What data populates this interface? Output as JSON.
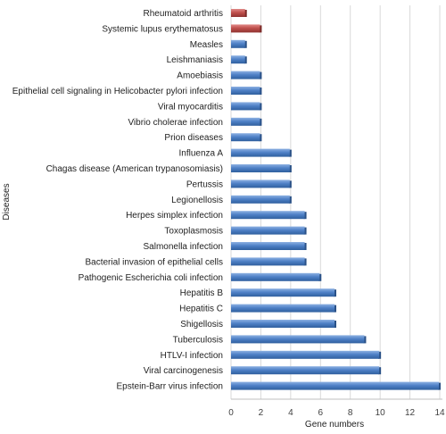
{
  "chart_data": {
    "type": "bar",
    "orientation": "horizontal",
    "xlabel": "Gene numbers",
    "ylabel": "Diseases",
    "xlim": [
      0,
      14
    ],
    "xticks": [
      0,
      2,
      4,
      6,
      8,
      10,
      12,
      14
    ],
    "grid": true,
    "colors": {
      "default": "#4a7ec3",
      "highlight": "#c0504d"
    },
    "bars": [
      {
        "label": "Rheumatoid arthritis",
        "value": 1,
        "highlight": true
      },
      {
        "label": "Systemic lupus erythematosus",
        "value": 2,
        "highlight": true
      },
      {
        "label": "Measles",
        "value": 1,
        "highlight": false
      },
      {
        "label": "Leishmaniasis",
        "value": 1,
        "highlight": false
      },
      {
        "label": "Amoebiasis",
        "value": 2,
        "highlight": false
      },
      {
        "label": "Epithelial cell signaling in Helicobacter pylori infection",
        "value": 2,
        "highlight": false
      },
      {
        "label": "Viral myocarditis",
        "value": 2,
        "highlight": false
      },
      {
        "label": "Vibrio cholerae infection",
        "value": 2,
        "highlight": false
      },
      {
        "label": "Prion diseases",
        "value": 2,
        "highlight": false
      },
      {
        "label": "Influenza A",
        "value": 4,
        "highlight": false
      },
      {
        "label": "Chagas disease (American trypanosomiasis)",
        "value": 4,
        "highlight": false
      },
      {
        "label": "Pertussis",
        "value": 4,
        "highlight": false
      },
      {
        "label": "Legionellosis",
        "value": 4,
        "highlight": false
      },
      {
        "label": "Herpes simplex infection",
        "value": 5,
        "highlight": false
      },
      {
        "label": "Toxoplasmosis",
        "value": 5,
        "highlight": false
      },
      {
        "label": "Salmonella infection",
        "value": 5,
        "highlight": false
      },
      {
        "label": "Bacterial invasion of epithelial cells",
        "value": 5,
        "highlight": false
      },
      {
        "label": "Pathogenic Escherichia coli infection",
        "value": 6,
        "highlight": false
      },
      {
        "label": "Hepatitis B",
        "value": 7,
        "highlight": false
      },
      {
        "label": "Hepatitis C",
        "value": 7,
        "highlight": false
      },
      {
        "label": "Shigellosis",
        "value": 7,
        "highlight": false
      },
      {
        "label": "Tuberculosis",
        "value": 9,
        "highlight": false
      },
      {
        "label": "HTLV-I infection",
        "value": 10,
        "highlight": false
      },
      {
        "label": "Viral carcinogenesis",
        "value": 10,
        "highlight": false
      },
      {
        "label": "Epstein-Barr virus infection",
        "value": 14,
        "highlight": false
      }
    ]
  }
}
